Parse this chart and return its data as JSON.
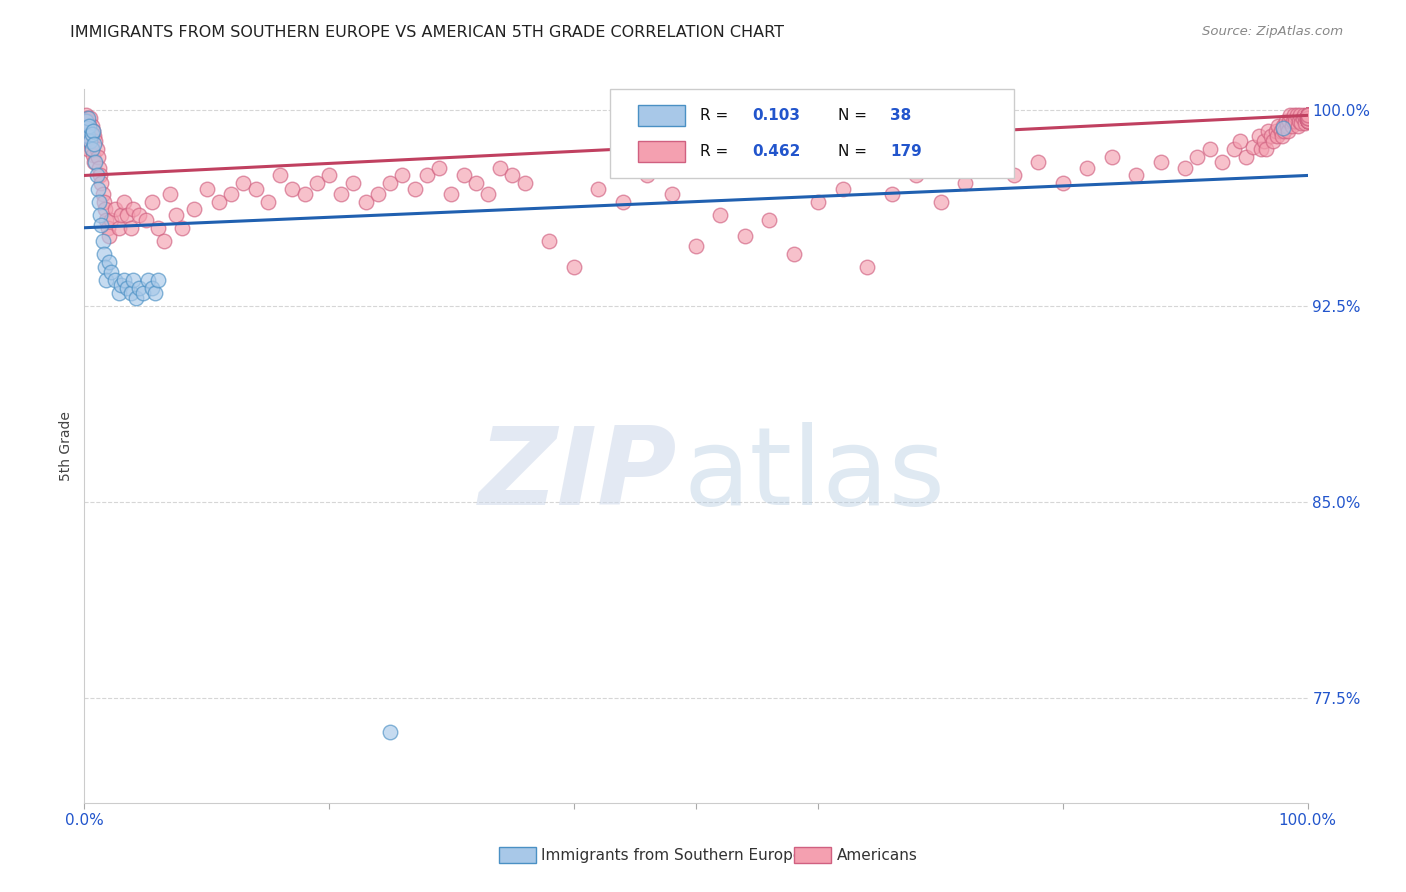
{
  "title": "IMMIGRANTS FROM SOUTHERN EUROPE VS AMERICAN 5TH GRADE CORRELATION CHART",
  "source": "Source: ZipAtlas.com",
  "ylabel": "5th Grade",
  "xlim": [
    0.0,
    1.0
  ],
  "ylim": [
    0.735,
    1.008
  ],
  "yticks": [
    0.775,
    0.85,
    0.925,
    1.0
  ],
  "ytick_labels": [
    "77.5%",
    "85.0%",
    "92.5%",
    "100.0%"
  ],
  "blue_R": 0.103,
  "blue_N": 38,
  "pink_R": 0.462,
  "pink_N": 179,
  "blue_fill": "#a8c8e8",
  "blue_edge": "#4a90c4",
  "pink_fill": "#f4a0b0",
  "pink_edge": "#d06080",
  "blue_line_color": "#2060b0",
  "pink_line_color": "#c04060",
  "legend_label_blue": "Immigrants from Southern Europe",
  "legend_label_pink": "Americans",
  "blue_scatter_x": [
    0.001,
    0.002,
    0.003,
    0.003,
    0.004,
    0.005,
    0.006,
    0.006,
    0.007,
    0.008,
    0.009,
    0.01,
    0.011,
    0.012,
    0.013,
    0.014,
    0.015,
    0.016,
    0.017,
    0.018,
    0.02,
    0.022,
    0.025,
    0.028,
    0.03,
    0.032,
    0.035,
    0.038,
    0.04,
    0.042,
    0.045,
    0.048,
    0.052,
    0.055,
    0.058,
    0.06,
    0.25,
    0.98
  ],
  "blue_scatter_y": [
    0.996,
    0.993,
    0.99,
    0.997,
    0.994,
    0.988,
    0.991,
    0.985,
    0.992,
    0.987,
    0.98,
    0.975,
    0.97,
    0.965,
    0.96,
    0.956,
    0.95,
    0.945,
    0.94,
    0.935,
    0.942,
    0.938,
    0.935,
    0.93,
    0.933,
    0.935,
    0.932,
    0.93,
    0.935,
    0.928,
    0.932,
    0.93,
    0.935,
    0.932,
    0.93,
    0.935,
    0.762,
    0.993
  ],
  "pink_scatter_x": [
    0.001,
    0.001,
    0.002,
    0.002,
    0.002,
    0.003,
    0.003,
    0.003,
    0.004,
    0.004,
    0.005,
    0.005,
    0.006,
    0.006,
    0.007,
    0.007,
    0.008,
    0.008,
    0.009,
    0.01,
    0.011,
    0.012,
    0.013,
    0.014,
    0.015,
    0.016,
    0.017,
    0.018,
    0.019,
    0.02,
    0.022,
    0.025,
    0.028,
    0.03,
    0.032,
    0.035,
    0.038,
    0.04,
    0.045,
    0.05,
    0.055,
    0.06,
    0.065,
    0.07,
    0.075,
    0.08,
    0.09,
    0.1,
    0.11,
    0.12,
    0.13,
    0.14,
    0.15,
    0.16,
    0.17,
    0.18,
    0.19,
    0.2,
    0.21,
    0.22,
    0.23,
    0.24,
    0.25,
    0.26,
    0.27,
    0.28,
    0.29,
    0.3,
    0.31,
    0.32,
    0.33,
    0.34,
    0.35,
    0.36,
    0.38,
    0.4,
    0.42,
    0.44,
    0.46,
    0.48,
    0.5,
    0.52,
    0.54,
    0.56,
    0.58,
    0.6,
    0.62,
    0.64,
    0.66,
    0.68,
    0.7,
    0.72,
    0.74,
    0.76,
    0.78,
    0.8,
    0.82,
    0.84,
    0.86,
    0.88,
    0.9,
    0.91,
    0.92,
    0.93,
    0.94,
    0.945,
    0.95,
    0.955,
    0.96,
    0.962,
    0.964,
    0.966,
    0.968,
    0.97,
    0.972,
    0.974,
    0.975,
    0.976,
    0.978,
    0.979,
    0.98,
    0.981,
    0.982,
    0.983,
    0.984,
    0.985,
    0.986,
    0.987,
    0.988,
    0.989,
    0.99,
    0.991,
    0.992,
    0.993,
    0.994,
    0.995,
    0.996,
    0.997,
    0.998,
    0.999,
    1.0,
    1.0,
    1.0,
    1.0,
    1.0,
    1.0,
    1.0,
    1.0,
    1.0,
    1.0,
    1.0,
    1.0,
    1.0,
    1.0,
    1.0,
    1.0,
    1.0,
    1.0,
    1.0,
    1.0,
    1.0,
    1.0,
    1.0,
    1.0,
    1.0,
    1.0,
    1.0,
    1.0,
    1.0,
    1.0,
    1.0,
    1.0,
    1.0,
    1.0,
    1.0,
    1.0,
    1.0,
    1.0,
    1.0,
    1.0
  ],
  "pink_scatter_y": [
    0.998,
    0.994,
    0.997,
    0.992,
    0.988,
    0.996,
    0.991,
    0.985,
    0.994,
    0.988,
    0.997,
    0.99,
    0.994,
    0.985,
    0.992,
    0.983,
    0.99,
    0.98,
    0.988,
    0.985,
    0.982,
    0.978,
    0.975,
    0.972,
    0.968,
    0.965,
    0.962,
    0.958,
    0.955,
    0.952,
    0.958,
    0.962,
    0.955,
    0.96,
    0.965,
    0.96,
    0.955,
    0.962,
    0.96,
    0.958,
    0.965,
    0.955,
    0.95,
    0.968,
    0.96,
    0.955,
    0.962,
    0.97,
    0.965,
    0.968,
    0.972,
    0.97,
    0.965,
    0.975,
    0.97,
    0.968,
    0.972,
    0.975,
    0.968,
    0.972,
    0.965,
    0.968,
    0.972,
    0.975,
    0.97,
    0.975,
    0.978,
    0.968,
    0.975,
    0.972,
    0.968,
    0.978,
    0.975,
    0.972,
    0.95,
    0.94,
    0.97,
    0.965,
    0.975,
    0.968,
    0.948,
    0.96,
    0.952,
    0.958,
    0.945,
    0.965,
    0.97,
    0.94,
    0.968,
    0.975,
    0.965,
    0.972,
    0.978,
    0.975,
    0.98,
    0.972,
    0.978,
    0.982,
    0.975,
    0.98,
    0.978,
    0.982,
    0.985,
    0.98,
    0.985,
    0.988,
    0.982,
    0.986,
    0.99,
    0.985,
    0.988,
    0.985,
    0.992,
    0.99,
    0.988,
    0.992,
    0.99,
    0.994,
    0.992,
    0.99,
    0.994,
    0.992,
    0.996,
    0.994,
    0.992,
    0.996,
    0.998,
    0.994,
    0.996,
    0.998,
    0.996,
    0.998,
    0.994,
    0.996,
    0.998,
    0.995,
    0.997,
    0.998,
    0.995,
    0.997,
    0.997,
    0.998,
    0.996,
    0.998,
    0.997,
    0.998,
    0.996,
    0.998,
    0.997,
    0.998,
    0.996,
    0.998,
    0.997,
    0.998,
    0.996,
    0.998,
    0.997,
    0.998,
    0.997,
    0.998,
    0.996,
    0.998,
    0.997,
    0.998,
    0.996,
    0.998,
    0.997,
    0.998,
    0.997,
    0.998,
    0.996,
    0.998,
    0.997,
    0.998,
    0.996,
    0.998,
    0.997,
    0.998,
    0.997,
    0.998
  ],
  "blue_trendline_x": [
    0.0,
    1.0
  ],
  "blue_trendline_y": [
    0.955,
    0.975
  ],
  "pink_trendline_x": [
    0.0,
    1.0
  ],
  "pink_trendline_y": [
    0.975,
    0.998
  ]
}
